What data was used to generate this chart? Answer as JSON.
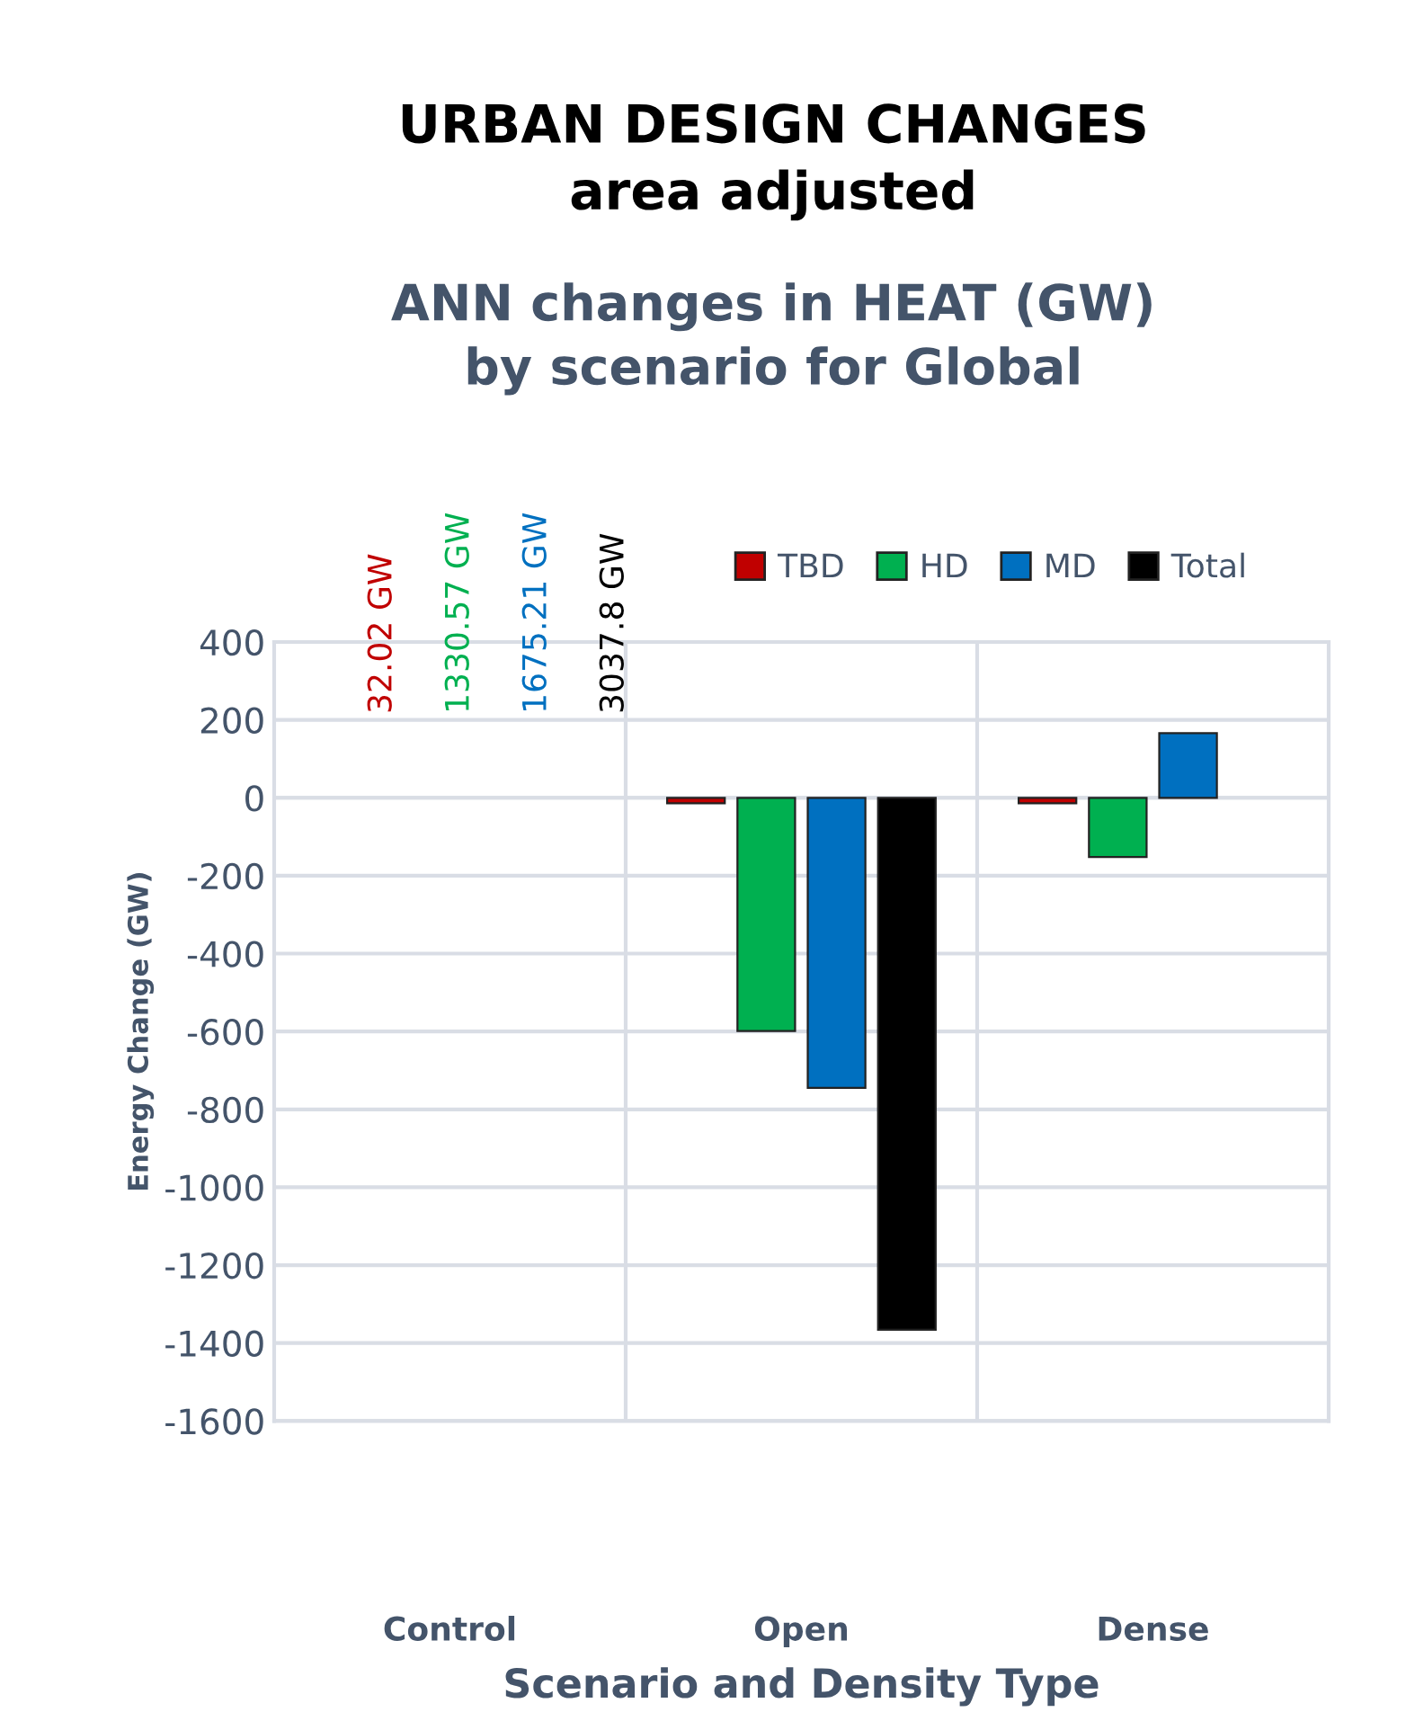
{
  "chart_data": {
    "type": "bar",
    "title": "URBAN DESIGN CHANGES\narea adjusted",
    "subtitle": "ANN changes in HEAT (GW)\nby scenario for Global",
    "xlabel": "Scenario and Density Type",
    "ylabel": "Energy Change (GW)",
    "categories": [
      "Control",
      "Open",
      "Dense"
    ],
    "series": [
      {
        "name": "TBD",
        "color": "#c00000",
        "values": [
          null,
          -14,
          -14
        ]
      },
      {
        "name": "HD",
        "color": "#00b050",
        "values": [
          null,
          -599,
          -152
        ]
      },
      {
        "name": "MD",
        "color": "#0070c0",
        "values": [
          null,
          -745,
          166
        ]
      },
      {
        "name": "Total",
        "color": "#000000",
        "values": [
          null,
          -1366,
          null
        ]
      }
    ],
    "annotations": [
      "32.02 GW",
      "1330.57 GW",
      "1675.21 GW",
      "3037.8 GW"
    ],
    "ylim": [
      -1600,
      400
    ],
    "yticks": [
      -1600,
      -1400,
      -1200,
      -1000,
      -800,
      -600,
      -400,
      -200,
      0,
      200,
      400
    ],
    "grid": true,
    "legend": "top right"
  }
}
